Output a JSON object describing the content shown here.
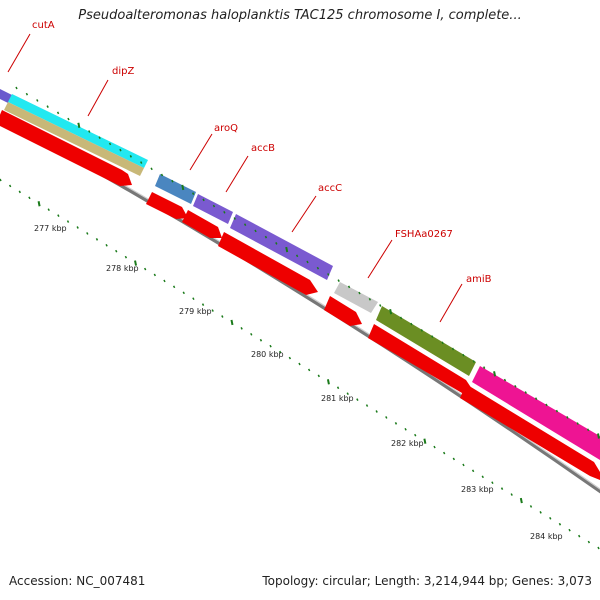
{
  "title": "Pseudoalteromonas haloplanktis TAC125 chromosome I, complete...",
  "footer": {
    "accession": "Accession: NC_007481",
    "topology": "Topology: circular; Length: 3,214,944 bp; Genes: 3,073"
  },
  "genes": [
    {
      "label": "cutA"
    },
    {
      "label": "dipZ"
    },
    {
      "label": "aroQ"
    },
    {
      "label": "accB"
    },
    {
      "label": "accC"
    },
    {
      "label": "FSHAa0267"
    },
    {
      "label": "amiB"
    }
  ],
  "kbp_marks": [
    "277 kbp",
    "278 kbp",
    "279 kbp",
    "280 kbp",
    "281 kbp",
    "282 kbp",
    "283 kbp",
    "284 kbp"
  ],
  "colors": {
    "label": "#cc0000",
    "cds": "#ee0000",
    "tick": "#1a7a1a",
    "backbone": "#888888"
  }
}
